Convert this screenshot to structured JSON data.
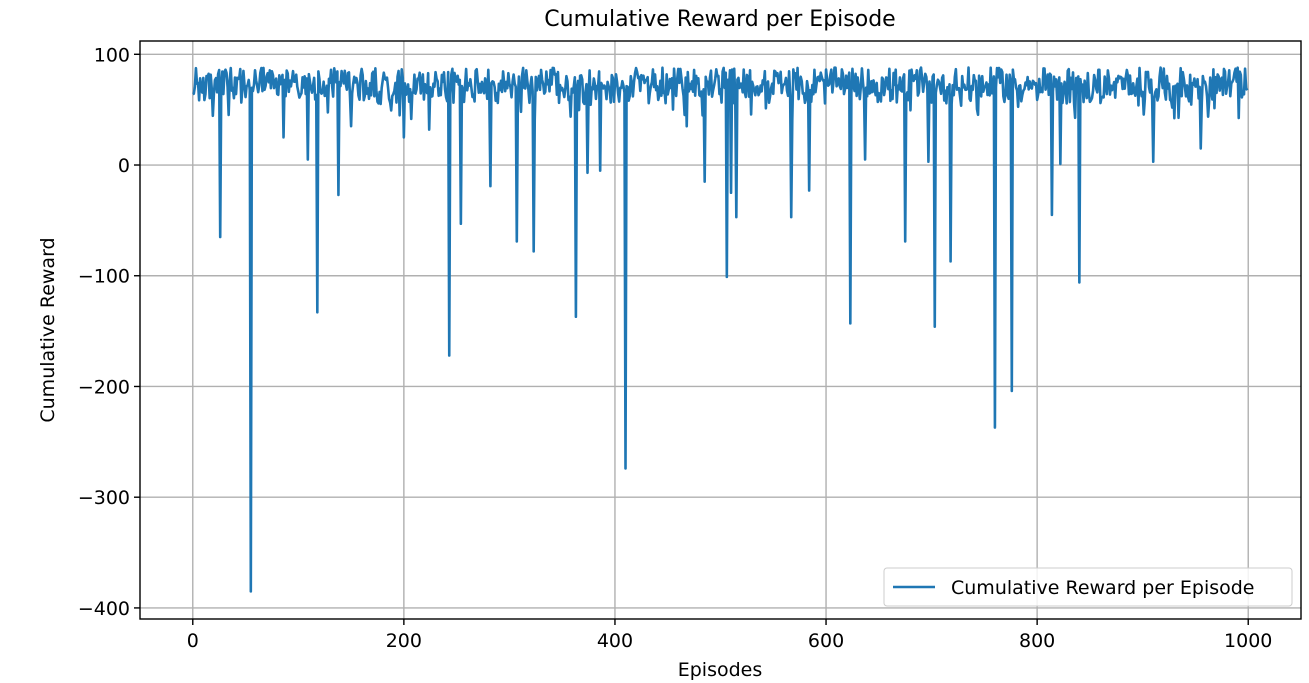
{
  "chart_data": {
    "type": "line",
    "title": "Cumulative Reward per Episode",
    "xlabel": "Episodes",
    "ylabel": "Cumulative Reward",
    "xlim": [
      -50,
      1050
    ],
    "ylim": [
      -410,
      112
    ],
    "xticks": [
      0,
      200,
      400,
      600,
      800,
      1000
    ],
    "yticks": [
      100,
      0,
      -100,
      -200,
      -300,
      -400
    ],
    "xtick_labels": [
      "0",
      "200",
      "400",
      "600",
      "800",
      "1000"
    ],
    "ytick_labels": [
      "100",
      "0",
      "−100",
      "−200",
      "−300",
      "−400"
    ],
    "grid": true,
    "legend_position": "lower-right",
    "series": [
      {
        "name": "Cumulative Reward per Episode",
        "color": "#1f77b4",
        "x_start": 0,
        "x_end": 999,
        "baseline_range": [
          40,
          88
        ],
        "dips": [
          {
            "x": 26,
            "y": -65
          },
          {
            "x": 55,
            "y": -385
          },
          {
            "x": 86,
            "y": 25
          },
          {
            "x": 109,
            "y": 5
          },
          {
            "x": 118,
            "y": -133
          },
          {
            "x": 138,
            "y": -27
          },
          {
            "x": 150,
            "y": 35
          },
          {
            "x": 200,
            "y": 25
          },
          {
            "x": 224,
            "y": 32
          },
          {
            "x": 243,
            "y": -172
          },
          {
            "x": 254,
            "y": -53
          },
          {
            "x": 282,
            "y": -19
          },
          {
            "x": 307,
            "y": -69
          },
          {
            "x": 323,
            "y": -78
          },
          {
            "x": 363,
            "y": -137
          },
          {
            "x": 374,
            "y": -7
          },
          {
            "x": 386,
            "y": -5
          },
          {
            "x": 410,
            "y": -274
          },
          {
            "x": 468,
            "y": 35
          },
          {
            "x": 485,
            "y": -15
          },
          {
            "x": 506,
            "y": -101
          },
          {
            "x": 510,
            "y": -25
          },
          {
            "x": 515,
            "y": -47
          },
          {
            "x": 567,
            "y": -47
          },
          {
            "x": 584,
            "y": -23
          },
          {
            "x": 623,
            "y": -143
          },
          {
            "x": 637,
            "y": 5
          },
          {
            "x": 675,
            "y": -69
          },
          {
            "x": 697,
            "y": 3
          },
          {
            "x": 703,
            "y": -146
          },
          {
            "x": 718,
            "y": -87
          },
          {
            "x": 760,
            "y": -237
          },
          {
            "x": 776,
            "y": -204
          },
          {
            "x": 814,
            "y": -45
          },
          {
            "x": 822,
            "y": 1
          },
          {
            "x": 840,
            "y": -106
          },
          {
            "x": 910,
            "y": 3
          },
          {
            "x": 955,
            "y": 15
          }
        ]
      }
    ]
  }
}
